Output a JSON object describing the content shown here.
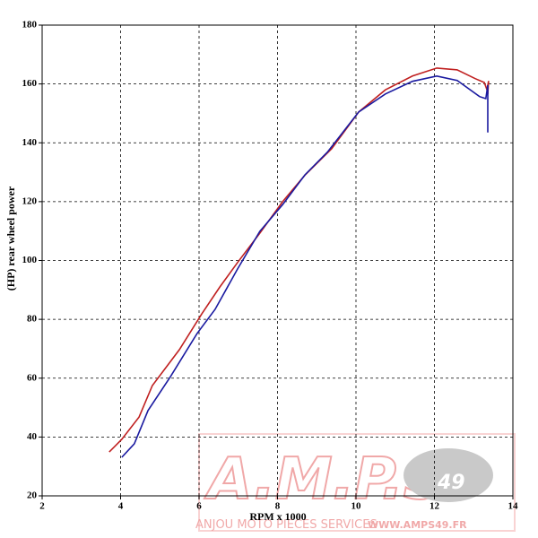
{
  "chart_data": {
    "type": "line",
    "xlabel": "RPM x 1000",
    "ylabel": "(HP) rear wheel power",
    "xlim": [
      2,
      14
    ],
    "xticks": [
      2,
      4,
      6,
      8,
      10,
      12,
      14
    ],
    "ylim": [
      20,
      180
    ],
    "yticks": [
      20,
      40,
      60,
      80,
      100,
      120,
      140,
      160,
      180
    ],
    "grid": true,
    "series": [
      {
        "color": "#c02020",
        "x": [
          3.71,
          4.03,
          4.47,
          4.81,
          5.5,
          6.07,
          6.53,
          6.98,
          7.55,
          8.13,
          8.7,
          9.38,
          10.07,
          10.75,
          11.44,
          12.06,
          12.58,
          13.04,
          13.27,
          13.34,
          13.38,
          13.36
        ],
        "values": [
          34.9,
          39.2,
          46.8,
          57.5,
          69.7,
          81.9,
          91,
          99.3,
          109.3,
          120,
          129,
          138,
          150.5,
          158,
          162.7,
          165.4,
          164.8,
          161.8,
          160.5,
          158,
          161,
          156.6
        ]
      },
      {
        "color": "#1a1aa0",
        "x": [
          4.03,
          4.35,
          4.7,
          5.27,
          5.95,
          6.41,
          6.98,
          7.55,
          8.13,
          8.7,
          9.27,
          10.07,
          10.75,
          11.44,
          12.06,
          12.58,
          13.15,
          13.31,
          13.36,
          13.36
        ],
        "values": [
          33.1,
          37.7,
          49,
          60.5,
          75.2,
          83.4,
          97.1,
          109.9,
          119,
          129.1,
          136.8,
          150.5,
          156.6,
          160.9,
          162.7,
          161.2,
          155.7,
          155,
          159.6,
          143.5
        ]
      }
    ]
  },
  "watermark": {
    "title": "A.M.P.S",
    "badge": "49",
    "subtitle": "ANJOU MOTO PIECES SERVICES",
    "url": "WWW.AMPS49.FR"
  }
}
